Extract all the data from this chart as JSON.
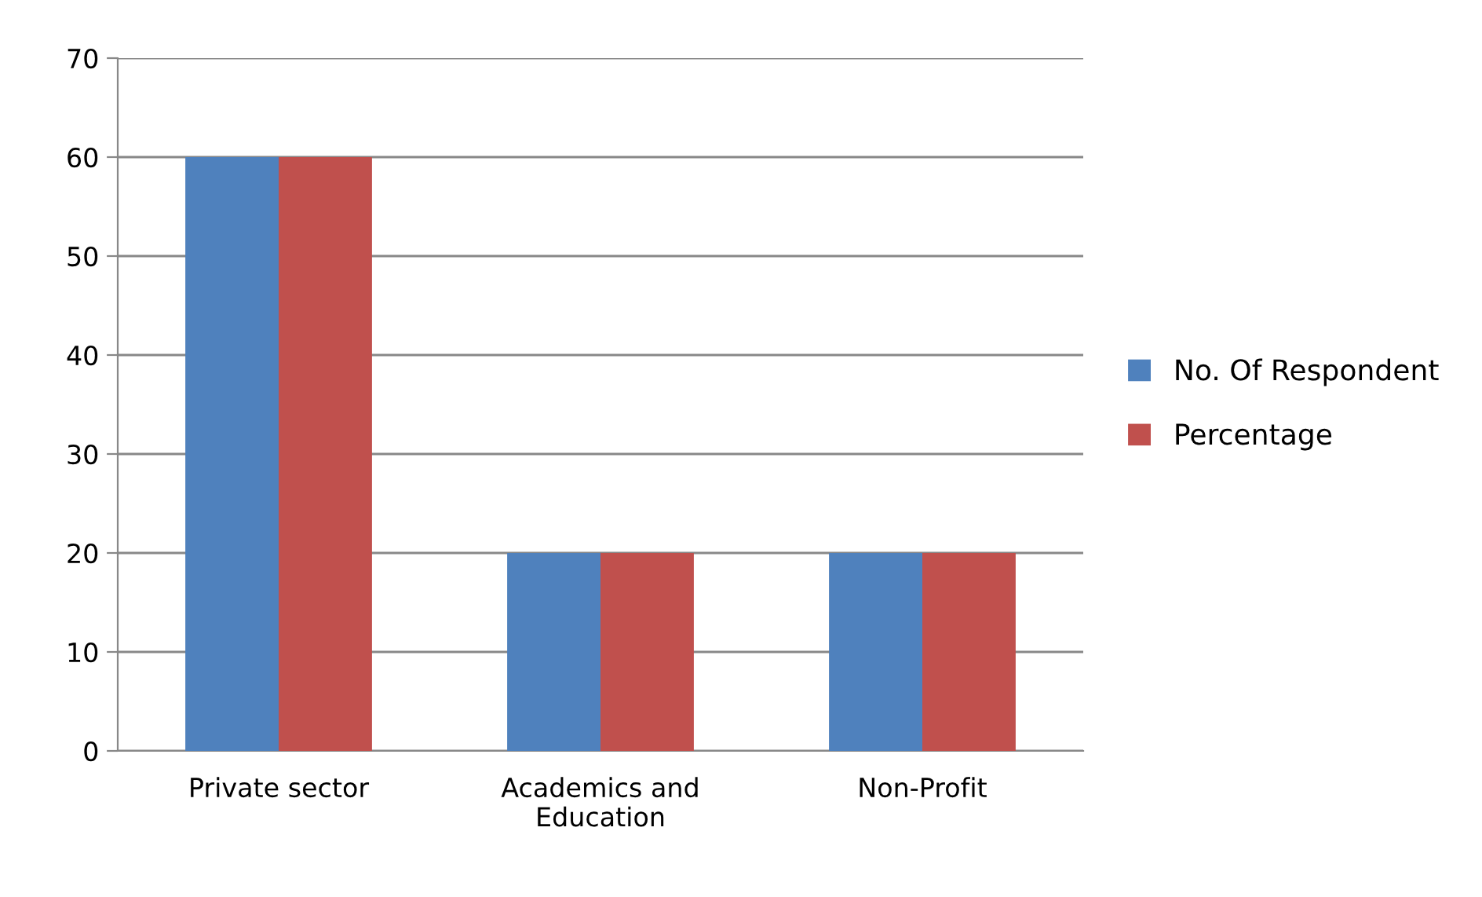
{
  "chart_data": {
    "type": "bar",
    "categories": [
      "Private sector",
      "Academics and\nEducation",
      "Non-Profit"
    ],
    "series": [
      {
        "name": "No. Of Respondent",
        "color": "#4f81bd",
        "values": [
          60,
          20,
          20
        ]
      },
      {
        "name": "Percentage",
        "color": "#c0504d",
        "values": [
          60,
          20,
          20
        ]
      }
    ],
    "ylim": [
      0,
      70
    ],
    "yticks": [
      0,
      10,
      20,
      30,
      40,
      50,
      60,
      70
    ],
    "grid": "y",
    "legend": "right"
  }
}
